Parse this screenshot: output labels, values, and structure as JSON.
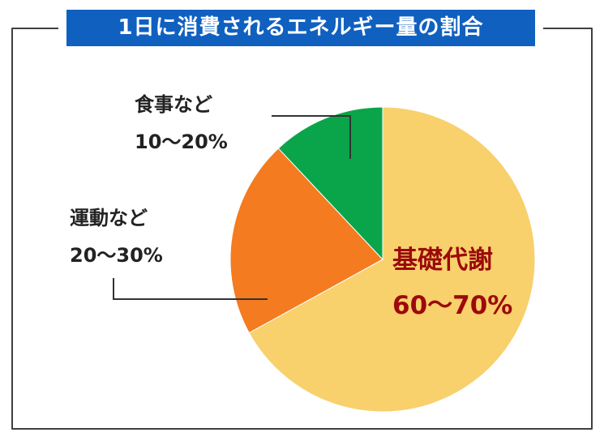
{
  "title": "1日に消費されるエネルギー量の割合",
  "colors": {
    "title_bg": "#1060c0",
    "highlight_text": "#9b0a0a"
  },
  "chart_data": {
    "type": "pie",
    "title": "1日に消費されるエネルギー量の割合",
    "start_angle_deg": 0,
    "direction": "clockwise",
    "slices": [
      {
        "key": "basal",
        "name": "基礎代謝",
        "range": "60〜70%",
        "value": 67,
        "color": "#f8d06c"
      },
      {
        "key": "exercise",
        "name": "運動など",
        "range": "20〜30%",
        "value": 21,
        "color": "#f47b20"
      },
      {
        "key": "food",
        "name": "食事など",
        "range": "10〜20%",
        "value": 12,
        "color": "#0aa54a"
      }
    ]
  }
}
